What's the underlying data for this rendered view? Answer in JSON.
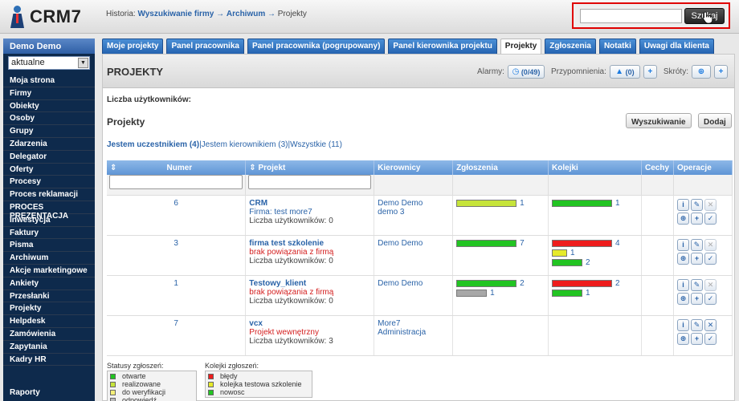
{
  "app": {
    "logo_text": "CRM7"
  },
  "breadcrumb": {
    "prefix": "Historia:",
    "item1": "Wyszukiwanie firmy",
    "sep": "→",
    "item2": "Archiwum",
    "item3": "Projekty"
  },
  "search": {
    "value": "",
    "button_label": "Szukaj"
  },
  "sidebar": {
    "user": "Demo Demo",
    "select_value": "aktualne",
    "items": [
      "Moja strona",
      "Firmy",
      "Obiekty",
      "Osoby",
      "Grupy",
      "Zdarzenia",
      "Delegator",
      "Oferty",
      "Procesy",
      "Proces reklamacji",
      "PROCES PREZENTACJA",
      "Inwestycja",
      "Faktury",
      "Pisma",
      "Archiwum",
      "Akcje marketingowe",
      "Ankiety",
      "Przesłanki",
      "Projekty",
      "Helpdesk",
      "Zamówienia",
      "Zapytania",
      "Kadry HR"
    ],
    "bottom": "Raporty"
  },
  "tabs": [
    "Moje projekty",
    "Panel pracownika",
    "Panel pracownika (pogrupowany)",
    "Panel kierownika projektu",
    "Projekty",
    "Zgłoszenia",
    "Notatki",
    "Uwagi dla klienta"
  ],
  "page": {
    "title": "PROJEKTY",
    "alarms_label": "Alarmy:",
    "alarms_count": "(0/49)",
    "reminders_label": "Przypomnienia:",
    "reminders_count": "(0)",
    "shortcuts_label": "Skróty:",
    "users_label": "Liczba użytkowników:",
    "section_title": "Projekty",
    "search_button": "Wyszukiwanie",
    "add_button": "Dodaj",
    "filter_1": "Jestem uczestnikiem (4)",
    "filter_2": "Jestem kierownikiem (3)",
    "filter_3": "Wszystkie (11)",
    "filter_sep": "|"
  },
  "table": {
    "columns": {
      "sort": "⇕",
      "numer": "Numer",
      "projekt": "Projekt",
      "kierownicy": "Kierownicy",
      "zgloszenia": "Zgłoszenia",
      "kolejki": "Kolejki",
      "cechy": "Cechy",
      "operacje": "Operacje"
    },
    "rows": [
      {
        "numer": "6",
        "name": "CRM",
        "line2": "Firma: test more7",
        "line3": "Liczba użytkowników: 0",
        "mgr1": "Demo Demo",
        "mgr2": "demo 3",
        "zg": [
          {
            "color": "#c6e43a",
            "count": "1",
            "level": 1.0
          }
        ],
        "kol": [
          {
            "color": "#22c422",
            "count": "1",
            "level": 1.0
          }
        ]
      },
      {
        "numer": "3",
        "name": "firma test szkolenie",
        "line2": "brak powiązania z firmą",
        "line3": "Liczba użytkowników: 0",
        "mgr1": "Demo Demo",
        "mgr2": "",
        "zg": [
          {
            "color": "#22c422",
            "count": "7",
            "level": 1.0
          }
        ],
        "kol": [
          {
            "color": "#ee1d1d",
            "count": "4",
            "level": 1.0
          },
          {
            "color": "#e6ea2a",
            "count": "1",
            "level": 0.25
          },
          {
            "color": "#22c422",
            "count": "2",
            "level": 0.5
          }
        ]
      },
      {
        "numer": "1",
        "name": "Testowy_klient",
        "line2": "brak powiązania z firmą",
        "line3": "Liczba użytkowników: 0",
        "mgr1": "Demo Demo",
        "mgr2": "",
        "zg": [
          {
            "color": "#22c422",
            "count": "2",
            "level": 1.0
          },
          {
            "color": "#a8a8a8",
            "count": "1",
            "level": 0.5
          }
        ],
        "kol": [
          {
            "color": "#ee1d1d",
            "count": "2",
            "level": 1.0
          },
          {
            "color": "#22c422",
            "count": "1",
            "level": 0.5
          }
        ]
      },
      {
        "numer": "7",
        "name": "vcx",
        "line2": "Projekt wewnętrzny",
        "line3": "Liczba użytkowników: 3",
        "mgr1": "More7 Administracja",
        "mgr2": "",
        "zg": [],
        "kol": []
      }
    ]
  },
  "legend": {
    "statuses_title": "Statusy zgłoszeń:",
    "statuses": [
      {
        "label": "otwarte",
        "color": "#22c422"
      },
      {
        "label": "realizowane",
        "color": "#c6e43a"
      },
      {
        "label": "do weryfikacji",
        "color": "#f5f07a"
      },
      {
        "label": "odpowiedź",
        "color": "#bbbbbb"
      }
    ],
    "queues_title": "Kolejki zgłoszeń:",
    "queues": [
      {
        "label": "błędy",
        "color": "#ee1d1d"
      },
      {
        "label": "kolejka testowa szkolenie",
        "color": "#e6ea2a"
      },
      {
        "label": "nowosc",
        "color": "#22c422"
      }
    ]
  }
}
